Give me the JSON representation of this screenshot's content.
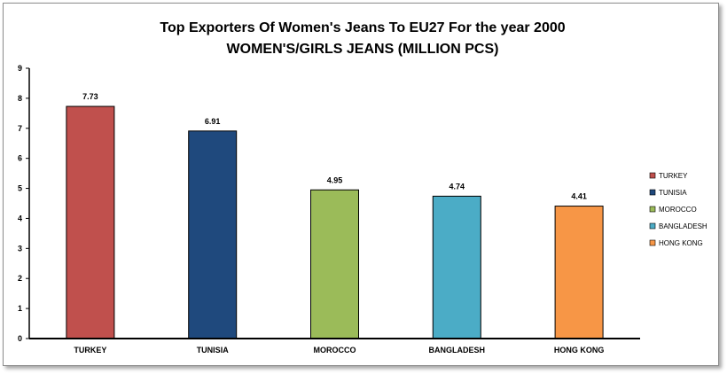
{
  "chart_data": {
    "type": "bar",
    "title": "Top Exporters Of Women's Jeans To EU27 For the year 2000",
    "subtitle": "WOMEN'S/GIRLS  JEANS (MILLION PCS)",
    "categories": [
      "TURKEY",
      "TUNISIA",
      "MOROCCO",
      "BANGLADESH",
      "HONG KONG"
    ],
    "values": [
      7.73,
      6.91,
      4.95,
      4.74,
      4.41
    ],
    "data_labels": [
      "7.73",
      "6.91",
      "4.95",
      "4.74",
      "4.41"
    ],
    "colors": [
      "#c0504d",
      "#1f497d",
      "#9bbb59",
      "#4bacc6",
      "#f79646"
    ],
    "ylim": [
      0,
      9
    ],
    "yticks": [
      0,
      1,
      2,
      3,
      4,
      5,
      6,
      7,
      8,
      9
    ],
    "xlabel": "",
    "ylabel": "",
    "grid": false,
    "legend": {
      "position": "right",
      "entries": [
        "TURKEY",
        "TUNISIA",
        "MOROCCO",
        "BANGLADESH",
        "HONG KONG"
      ]
    }
  }
}
